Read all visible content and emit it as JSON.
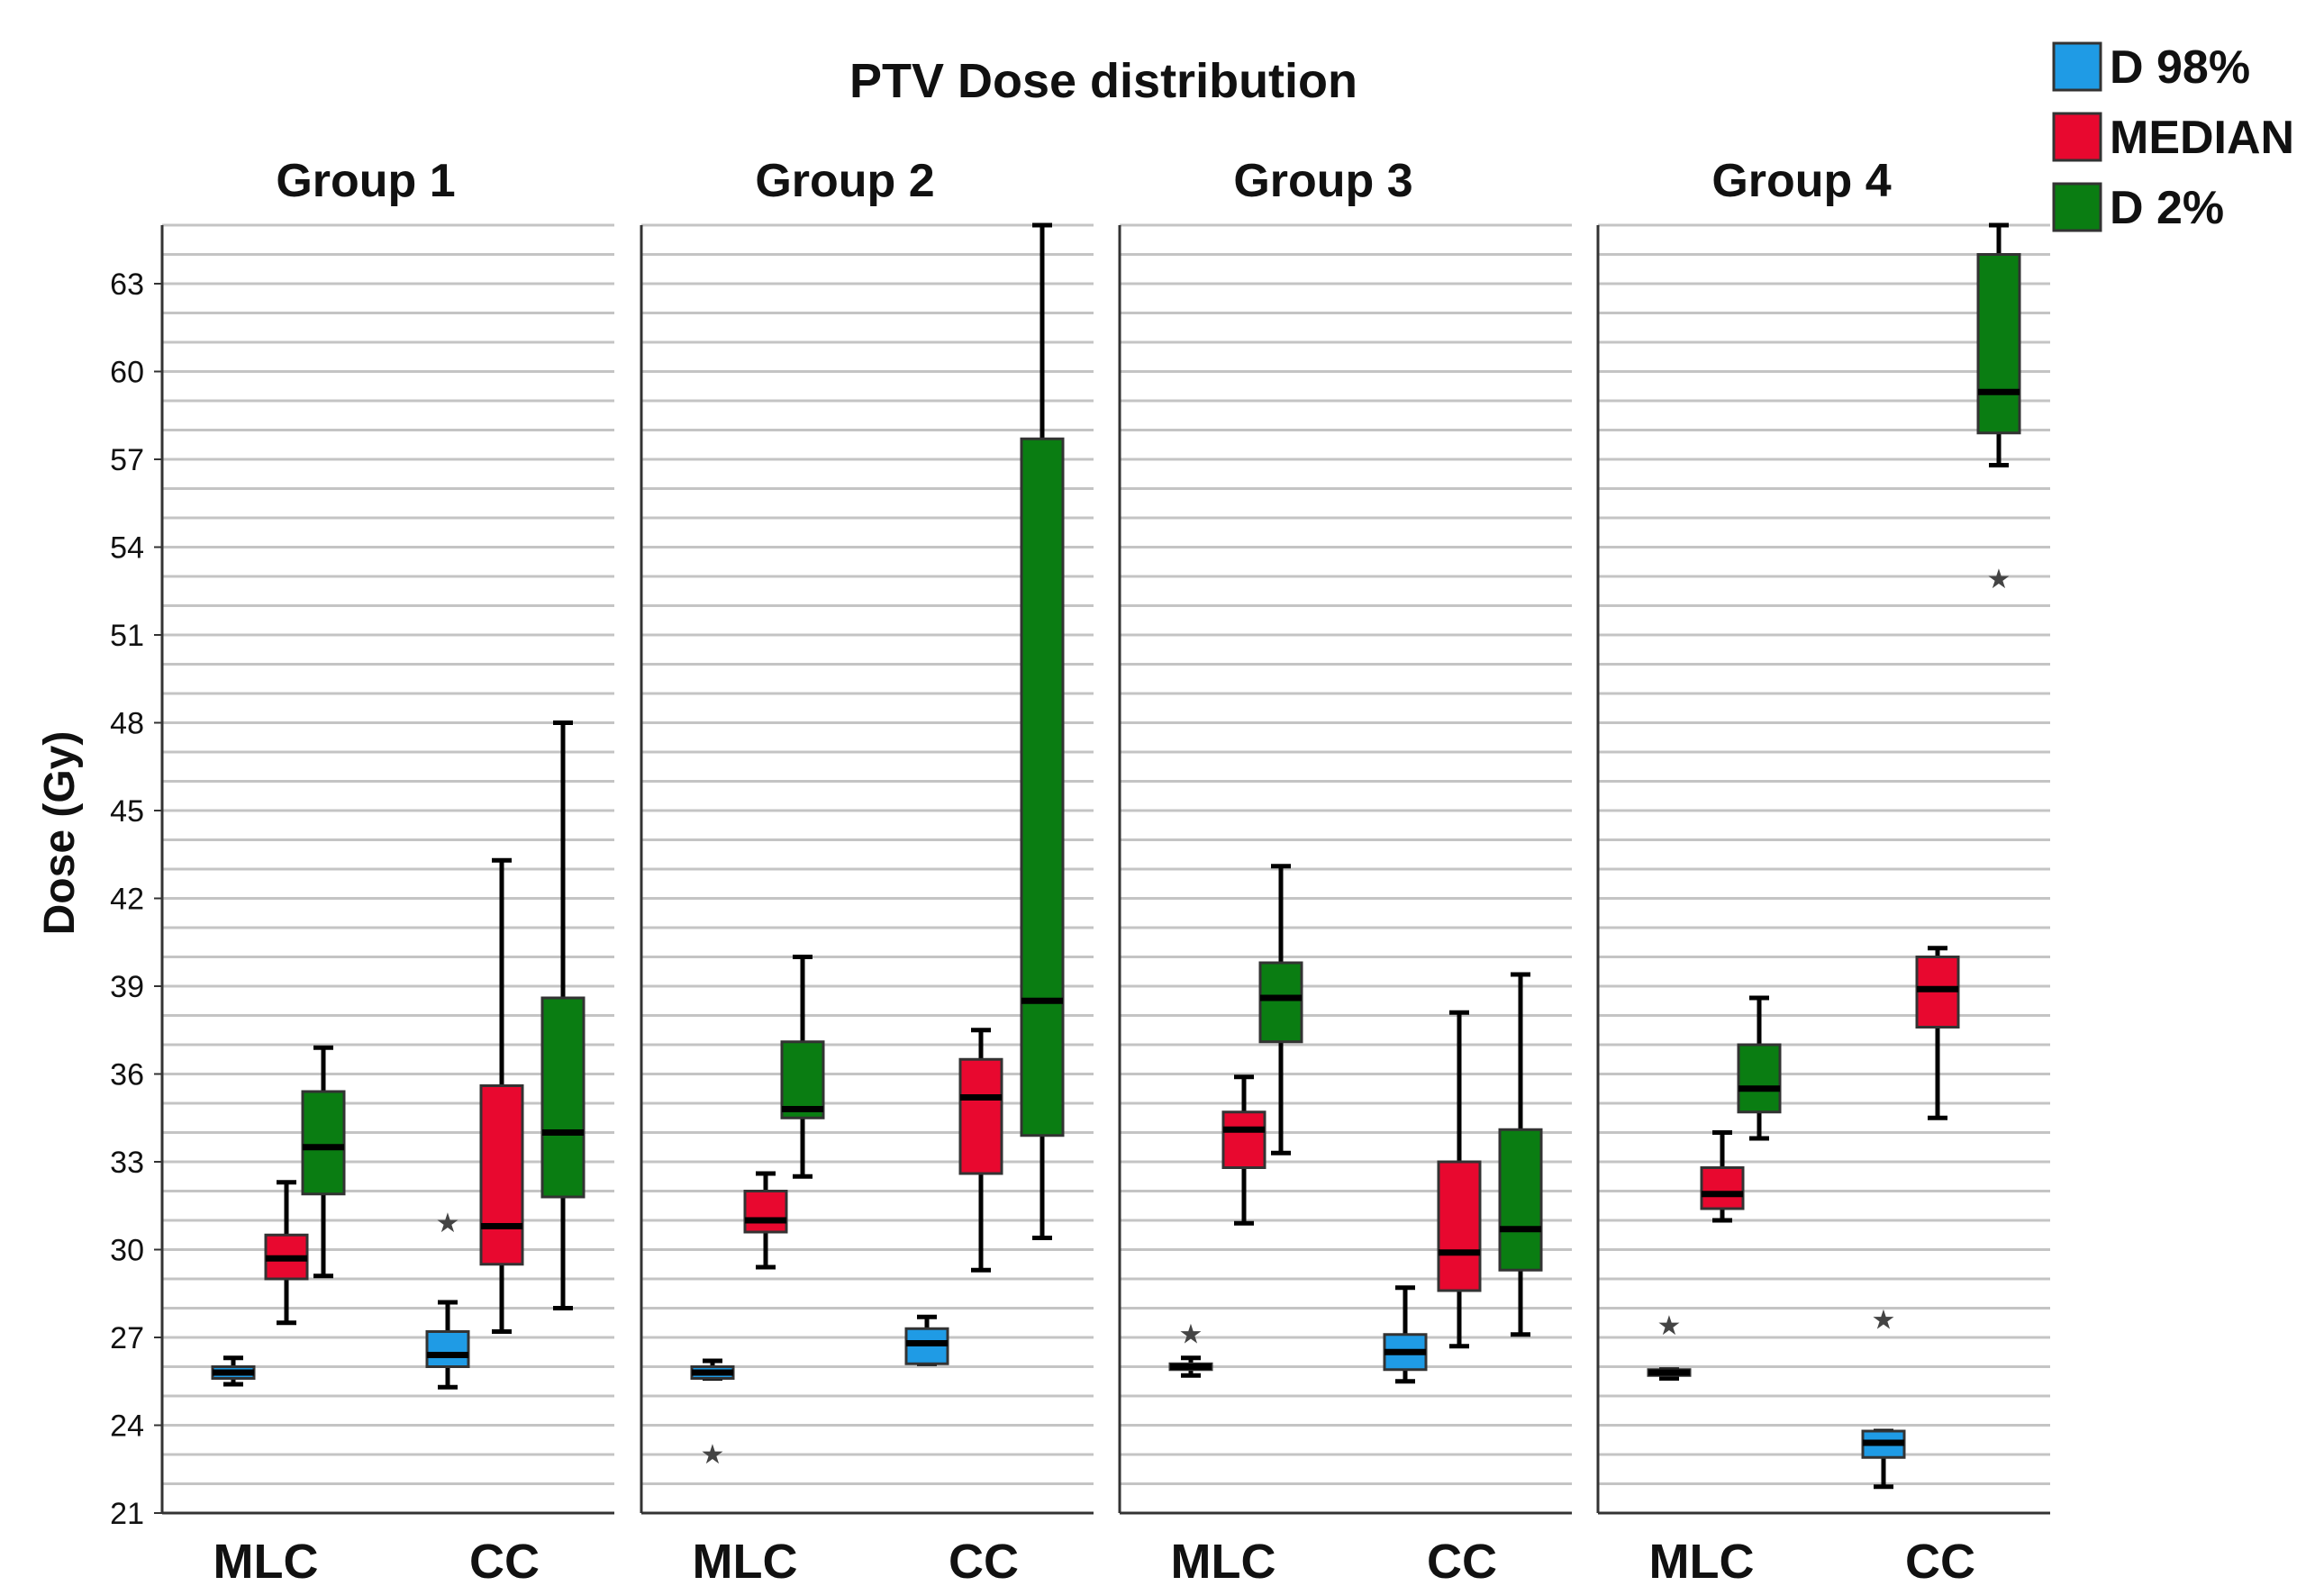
{
  "chart_data": {
    "type": "boxplot",
    "title": "PTV Dose distribution",
    "ylabel": "Dose (Gy)",
    "xlabel": "",
    "ylim": [
      21,
      65
    ],
    "yticks": [
      21,
      24,
      27,
      30,
      33,
      36,
      39,
      42,
      45,
      48,
      51,
      54,
      57,
      60,
      63
    ],
    "grid": "horizontal",
    "categories": [
      "MLC",
      "CC"
    ],
    "legend": {
      "placement": "top-right",
      "entries": [
        {
          "name": "D 98%",
          "color": "#1f9be5"
        },
        {
          "name": "MEDIAN",
          "color": "#e8082f"
        },
        {
          "name": "D 2%",
          "color": "#0a7d12"
        }
      ]
    },
    "panels": [
      {
        "name": "Group 1",
        "boxes": [
          {
            "category": "MLC",
            "series": "D 98%",
            "min": 25.4,
            "q1": 25.6,
            "median": 25.8,
            "q3": 26.0,
            "max": 26.3,
            "outliers": []
          },
          {
            "category": "MLC",
            "series": "MEDIAN",
            "min": 27.5,
            "q1": 29.0,
            "median": 29.7,
            "q3": 30.5,
            "max": 32.3,
            "outliers": []
          },
          {
            "category": "MLC",
            "series": "D 2%",
            "min": 29.1,
            "q1": 31.9,
            "median": 33.5,
            "q3": 35.4,
            "max": 36.9,
            "outliers": []
          },
          {
            "category": "CC",
            "series": "D 98%",
            "min": 25.3,
            "q1": 26.0,
            "median": 26.4,
            "q3": 27.2,
            "max": 28.2,
            "outliers": [
              31.0
            ]
          },
          {
            "category": "CC",
            "series": "MEDIAN",
            "min": 27.2,
            "q1": 29.5,
            "median": 30.8,
            "q3": 35.6,
            "max": 43.3,
            "outliers": []
          },
          {
            "category": "CC",
            "series": "D 2%",
            "min": 28.0,
            "q1": 31.8,
            "median": 34.0,
            "q3": 38.6,
            "max": 48.0,
            "outliers": []
          }
        ]
      },
      {
        "name": "Group 2",
        "boxes": [
          {
            "category": "MLC",
            "series": "D 98%",
            "min": 25.6,
            "q1": 25.6,
            "median": 25.8,
            "q3": 26.0,
            "max": 26.2,
            "outliers": [
              23.1
            ]
          },
          {
            "category": "MLC",
            "series": "MEDIAN",
            "min": 29.4,
            "q1": 30.6,
            "median": 31.0,
            "q3": 32.0,
            "max": 32.6,
            "outliers": []
          },
          {
            "category": "MLC",
            "series": "D 2%",
            "min": 32.5,
            "q1": 34.5,
            "median": 34.8,
            "q3": 37.1,
            "max": 40.0,
            "outliers": []
          },
          {
            "category": "CC",
            "series": "D 98%",
            "min": 26.1,
            "q1": 26.1,
            "median": 26.8,
            "q3": 27.3,
            "max": 27.7,
            "outliers": []
          },
          {
            "category": "CC",
            "series": "MEDIAN",
            "min": 29.3,
            "q1": 32.6,
            "median": 35.2,
            "q3": 36.5,
            "max": 37.5,
            "outliers": []
          },
          {
            "category": "CC",
            "series": "D 2%",
            "min": 30.4,
            "q1": 33.9,
            "median": 38.5,
            "q3": 57.7,
            "max": 65.0,
            "outliers": []
          }
        ]
      },
      {
        "name": "Group 3",
        "boxes": [
          {
            "category": "MLC",
            "series": "D 98%",
            "min": 25.7,
            "q1": 25.9,
            "median": 26.0,
            "q3": 26.1,
            "max": 26.3,
            "outliers": [
              27.2
            ]
          },
          {
            "category": "MLC",
            "series": "MEDIAN",
            "min": 30.9,
            "q1": 32.8,
            "median": 34.1,
            "q3": 34.7,
            "max": 35.9,
            "outliers": []
          },
          {
            "category": "MLC",
            "series": "D 2%",
            "min": 33.3,
            "q1": 37.1,
            "median": 38.6,
            "q3": 39.8,
            "max": 43.1,
            "outliers": []
          },
          {
            "category": "CC",
            "series": "D 98%",
            "min": 25.5,
            "q1": 25.9,
            "median": 26.5,
            "q3": 27.1,
            "max": 28.7,
            "outliers": []
          },
          {
            "category": "CC",
            "series": "MEDIAN",
            "min": 26.7,
            "q1": 28.6,
            "median": 29.9,
            "q3": 33.0,
            "max": 38.1,
            "outliers": []
          },
          {
            "category": "CC",
            "series": "D 2%",
            "min": 27.1,
            "q1": 29.3,
            "median": 30.7,
            "q3": 34.1,
            "max": 39.4,
            "outliers": []
          }
        ]
      },
      {
        "name": "Group 4",
        "boxes": [
          {
            "category": "MLC",
            "series": "D 98%",
            "min": 25.6,
            "q1": 25.7,
            "median": 25.8,
            "q3": 25.9,
            "max": 25.9,
            "outliers": [
              27.5
            ]
          },
          {
            "category": "MLC",
            "series": "MEDIAN",
            "min": 31.0,
            "q1": 31.4,
            "median": 31.9,
            "q3": 32.8,
            "max": 34.0,
            "outliers": []
          },
          {
            "category": "MLC",
            "series": "D 2%",
            "min": 33.8,
            "q1": 34.7,
            "median": 35.5,
            "q3": 37.0,
            "max": 38.6,
            "outliers": []
          },
          {
            "category": "CC",
            "series": "D 98%",
            "min": 21.9,
            "q1": 22.9,
            "median": 23.4,
            "q3": 23.8,
            "max": 23.8,
            "outliers": [
              27.7
            ]
          },
          {
            "category": "CC",
            "series": "MEDIAN",
            "min": 34.5,
            "q1": 37.6,
            "median": 38.9,
            "q3": 40.0,
            "max": 40.3,
            "outliers": []
          },
          {
            "category": "CC",
            "series": "D 2%",
            "min": 56.8,
            "q1": 57.9,
            "median": 59.3,
            "q3": 64.0,
            "max": 65.0,
            "outliers": [
              53.0
            ]
          }
        ]
      }
    ]
  }
}
